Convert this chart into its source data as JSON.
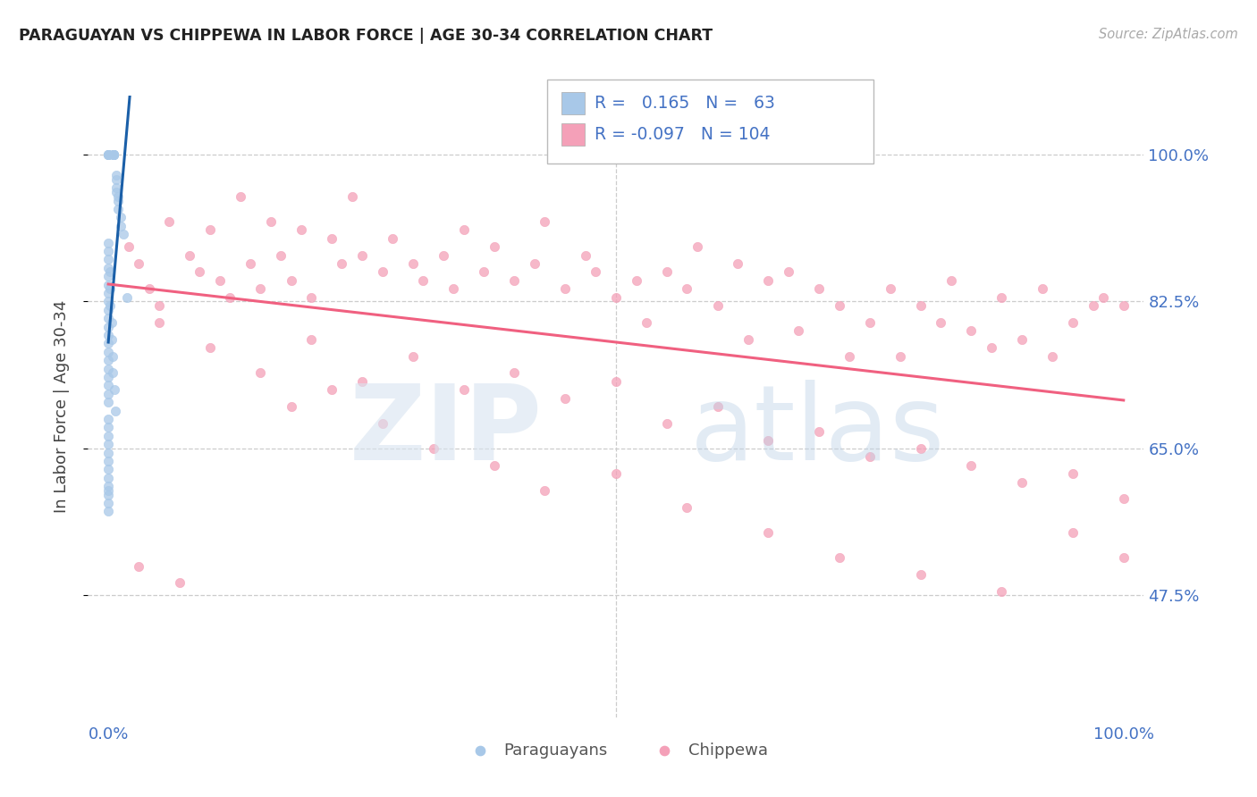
{
  "title": "PARAGUAYAN VS CHIPPEWA IN LABOR FORCE | AGE 30-34 CORRELATION CHART",
  "source_text": "Source: ZipAtlas.com",
  "ylabel": "In Labor Force | Age 30-34",
  "xlim": [
    -0.02,
    1.02
  ],
  "ylim": [
    0.33,
    1.07
  ],
  "yticks": [
    0.475,
    0.65,
    0.825,
    1.0
  ],
  "ytick_labels": [
    "47.5%",
    "65.0%",
    "82.5%",
    "100.0%"
  ],
  "xticks": [
    0.0,
    1.0
  ],
  "xtick_labels": [
    "0.0%",
    "100.0%"
  ],
  "r_blue": 0.165,
  "n_blue": 63,
  "r_pink": -0.097,
  "n_pink": 104,
  "blue_color": "#a8c8e8",
  "pink_color": "#f4a0b8",
  "blue_line_color": "#1a5fa8",
  "pink_line_color": "#f06080",
  "legend_label_blue": "Paraguayans",
  "legend_label_pink": "Chippewa",
  "blue_dots_x": [
    0.0,
    0.0,
    0.0,
    0.0,
    0.005,
    0.005,
    0.005,
    0.005,
    0.005,
    0.005,
    0.008,
    0.008,
    0.008,
    0.008,
    0.01,
    0.01,
    0.01,
    0.012,
    0.012,
    0.015,
    0.0,
    0.0,
    0.0,
    0.0,
    0.0,
    0.0,
    0.0,
    0.0,
    0.0,
    0.0,
    0.0,
    0.0,
    0.0,
    0.0,
    0.0,
    0.0,
    0.0,
    0.0,
    0.0,
    0.0,
    0.002,
    0.002,
    0.002,
    0.003,
    0.003,
    0.004,
    0.004,
    0.006,
    0.007,
    0.018,
    0.0,
    0.0,
    0.0,
    0.0,
    0.0,
    0.0,
    0.0,
    0.0,
    0.0,
    0.0,
    0.0,
    0.0,
    0.0
  ],
  "blue_dots_y": [
    1.0,
    1.0,
    1.0,
    1.0,
    1.0,
    1.0,
    1.0,
    1.0,
    1.0,
    1.0,
    0.975,
    0.97,
    0.96,
    0.955,
    0.95,
    0.945,
    0.935,
    0.925,
    0.915,
    0.905,
    0.895,
    0.885,
    0.875,
    0.865,
    0.855,
    0.845,
    0.835,
    0.825,
    0.815,
    0.805,
    0.795,
    0.785,
    0.775,
    0.765,
    0.755,
    0.745,
    0.735,
    0.725,
    0.715,
    0.705,
    0.86,
    0.84,
    0.82,
    0.8,
    0.78,
    0.76,
    0.74,
    0.72,
    0.695,
    0.83,
    0.685,
    0.675,
    0.665,
    0.655,
    0.645,
    0.635,
    0.625,
    0.615,
    0.605,
    0.595,
    0.585,
    0.575,
    0.6
  ],
  "pink_dots_x": [
    0.02,
    0.03,
    0.04,
    0.05,
    0.06,
    0.08,
    0.09,
    0.1,
    0.11,
    0.12,
    0.13,
    0.14,
    0.15,
    0.16,
    0.17,
    0.18,
    0.19,
    0.2,
    0.22,
    0.23,
    0.24,
    0.25,
    0.27,
    0.28,
    0.3,
    0.31,
    0.33,
    0.34,
    0.35,
    0.37,
    0.38,
    0.4,
    0.42,
    0.43,
    0.45,
    0.47,
    0.48,
    0.5,
    0.52,
    0.53,
    0.55,
    0.57,
    0.58,
    0.6,
    0.62,
    0.63,
    0.65,
    0.67,
    0.68,
    0.7,
    0.72,
    0.73,
    0.75,
    0.77,
    0.78,
    0.8,
    0.82,
    0.83,
    0.85,
    0.87,
    0.88,
    0.9,
    0.92,
    0.93,
    0.95,
    0.97,
    0.98,
    1.0,
    0.05,
    0.1,
    0.15,
    0.2,
    0.25,
    0.3,
    0.35,
    0.4,
    0.45,
    0.5,
    0.55,
    0.6,
    0.65,
    0.7,
    0.75,
    0.8,
    0.85,
    0.9,
    0.95,
    1.0,
    0.18,
    0.22,
    0.27,
    0.32,
    0.38,
    0.43,
    0.5,
    0.57,
    0.65,
    0.72,
    0.8,
    0.88,
    0.95,
    1.0,
    0.03,
    0.07
  ],
  "pink_dots_y": [
    0.89,
    0.87,
    0.84,
    0.82,
    0.92,
    0.88,
    0.86,
    0.91,
    0.85,
    0.83,
    0.95,
    0.87,
    0.84,
    0.92,
    0.88,
    0.85,
    0.91,
    0.83,
    0.9,
    0.87,
    0.95,
    0.88,
    0.86,
    0.9,
    0.87,
    0.85,
    0.88,
    0.84,
    0.91,
    0.86,
    0.89,
    0.85,
    0.87,
    0.92,
    0.84,
    0.88,
    0.86,
    0.83,
    0.85,
    0.8,
    0.86,
    0.84,
    0.89,
    0.82,
    0.87,
    0.78,
    0.85,
    0.86,
    0.79,
    0.84,
    0.82,
    0.76,
    0.8,
    0.84,
    0.76,
    0.82,
    0.8,
    0.85,
    0.79,
    0.77,
    0.83,
    0.78,
    0.84,
    0.76,
    0.8,
    0.82,
    0.83,
    0.82,
    0.8,
    0.77,
    0.74,
    0.78,
    0.73,
    0.76,
    0.72,
    0.74,
    0.71,
    0.73,
    0.68,
    0.7,
    0.66,
    0.67,
    0.64,
    0.65,
    0.63,
    0.61,
    0.62,
    0.59,
    0.7,
    0.72,
    0.68,
    0.65,
    0.63,
    0.6,
    0.62,
    0.58,
    0.55,
    0.52,
    0.5,
    0.48,
    0.55,
    0.52,
    0.51,
    0.49
  ]
}
